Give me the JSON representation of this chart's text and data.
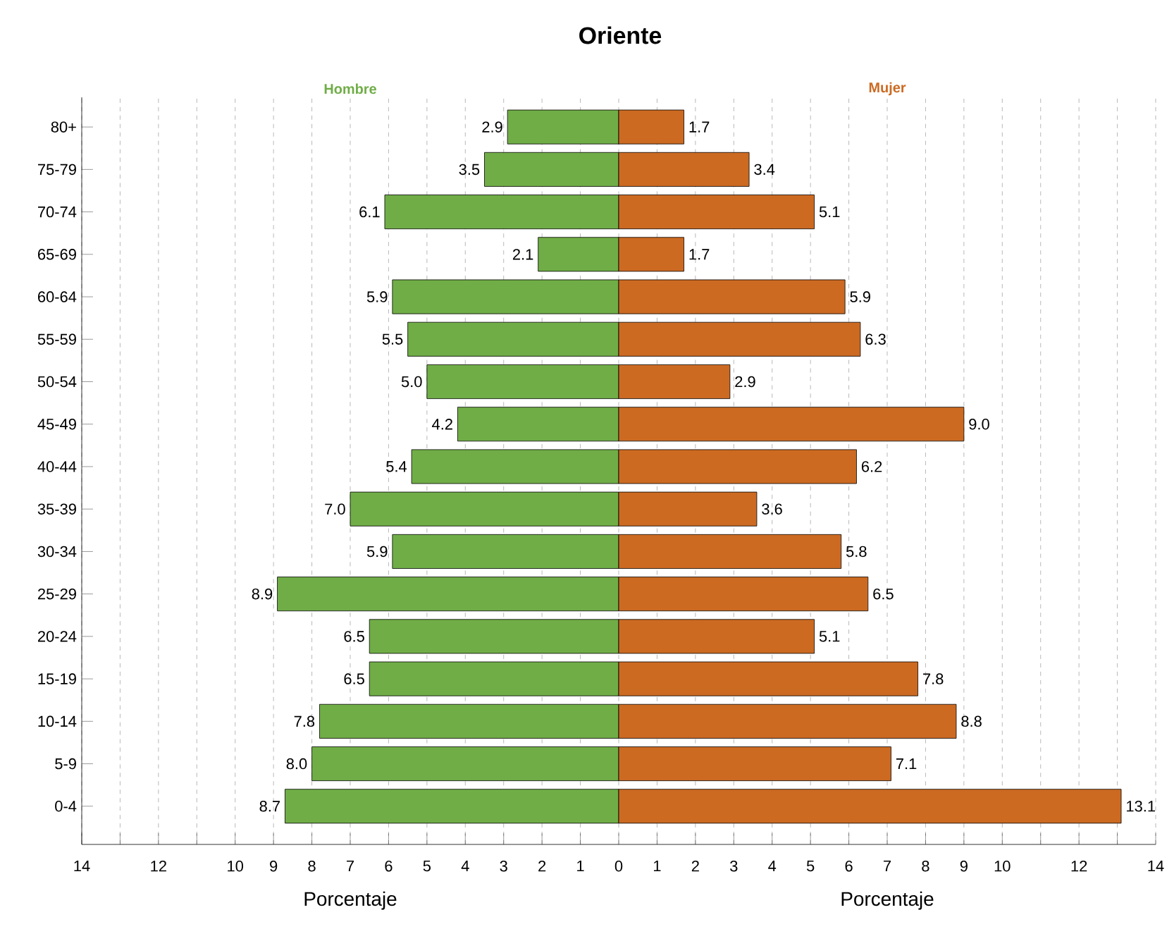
{
  "chart_data": {
    "type": "bar",
    "orientation": "horizontal",
    "title": "Oriente",
    "xlabel": "Porcentaje",
    "annotations": [
      "Porcentaje"
    ],
    "categories": [
      "80+",
      "75-79",
      "70-74",
      "65-69",
      "60-64",
      "55-59",
      "50-54",
      "45-49",
      "40-44",
      "35-39",
      "30-34",
      "25-29",
      "20-24",
      "15-19",
      "10-14",
      "5-9",
      "0-4"
    ],
    "series": [
      {
        "name": "Hombre",
        "color": "#70ad47",
        "values": [
          2.9,
          3.5,
          6.1,
          2.1,
          5.9,
          5.5,
          5.0,
          4.2,
          5.4,
          7.0,
          5.9,
          8.9,
          6.5,
          6.5,
          7.8,
          8.0,
          8.7
        ],
        "base": [
          -2.9,
          -3.5,
          -6.1,
          -2.1,
          -5.9,
          -5.5,
          -5.0,
          -4.2,
          -5.4,
          -7.0,
          -5.9,
          -8.9,
          -6.5,
          -6.5,
          -7.8,
          -8.0,
          -8.7
        ],
        "value_labels": [
          "2.9",
          "3.5",
          "6.1",
          "2.1",
          "5.9",
          "5.5",
          "5.0",
          "4.2",
          "5.4",
          "7.0",
          "5.9",
          "8.9",
          "6.5",
          "6.5",
          "7.8",
          "8.0",
          "8.7"
        ]
      },
      {
        "name": "Mujer",
        "color": "#cc6a22",
        "values": [
          1.7,
          3.4,
          5.1,
          1.7,
          5.9,
          6.3,
          2.9,
          9.0,
          6.2,
          3.6,
          5.8,
          6.5,
          5.1,
          7.8,
          8.8,
          7.1,
          13.1
        ],
        "value_labels": [
          "1.7",
          "3.4",
          "5.1",
          "1.7",
          "5.9",
          "6.3",
          "2.9",
          "9.0",
          "6.2",
          "3.6",
          "5.8",
          "6.5",
          "5.1",
          "7.8",
          "8.8",
          "7.1",
          "13.1"
        ]
      }
    ],
    "xlim": [
      -14,
      14
    ],
    "xticks": [
      {
        "value": -14,
        "label": "14"
      },
      {
        "value": -13,
        "label": null
      },
      {
        "value": -12,
        "label": "12"
      },
      {
        "value": -11,
        "label": null
      },
      {
        "value": -10,
        "label": "10"
      },
      {
        "value": -9,
        "label": "9"
      },
      {
        "value": -8,
        "label": "8"
      },
      {
        "value": -7,
        "label": "7"
      },
      {
        "value": -6,
        "label": "6"
      },
      {
        "value": -5,
        "label": "5"
      },
      {
        "value": -4,
        "label": "4"
      },
      {
        "value": -3,
        "label": "3"
      },
      {
        "value": -2,
        "label": "2"
      },
      {
        "value": -1,
        "label": "1"
      },
      0,
      1,
      2,
      3,
      4,
      5,
      6,
      7,
      8,
      9,
      10,
      {
        "value": 11,
        "label": null
      },
      12,
      {
        "value": 13,
        "label": null
      },
      14
    ],
    "grid": "x",
    "legend": false
  }
}
